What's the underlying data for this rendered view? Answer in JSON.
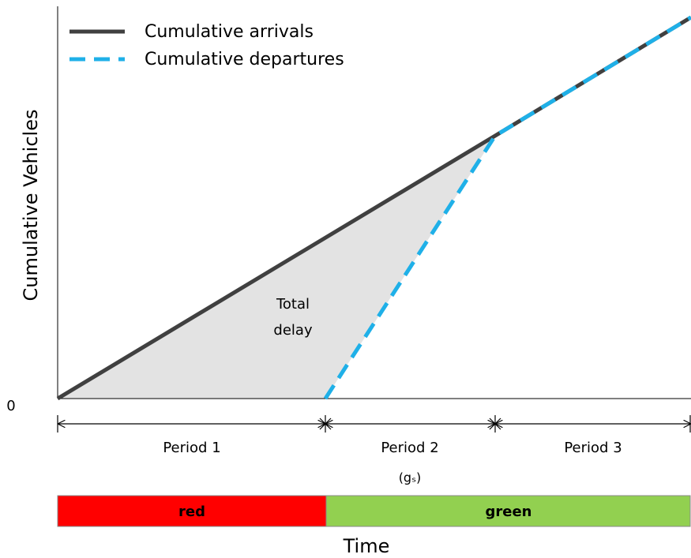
{
  "legend": {
    "items": [
      "Cumulative arrivals",
      "Cumulative departures"
    ]
  },
  "y_axis": {
    "label": "Cumulative Vehicles",
    "origin_label": "0"
  },
  "x_axis": {
    "label": "Time"
  },
  "annotation": [
    "Total",
    "delay"
  ],
  "periods": [
    {
      "label": "Period 1"
    },
    {
      "label": "Period 2",
      "note": "(gₛ)"
    },
    {
      "label": "Period 3"
    }
  ],
  "signal": [
    "red",
    "green"
  ]
}
